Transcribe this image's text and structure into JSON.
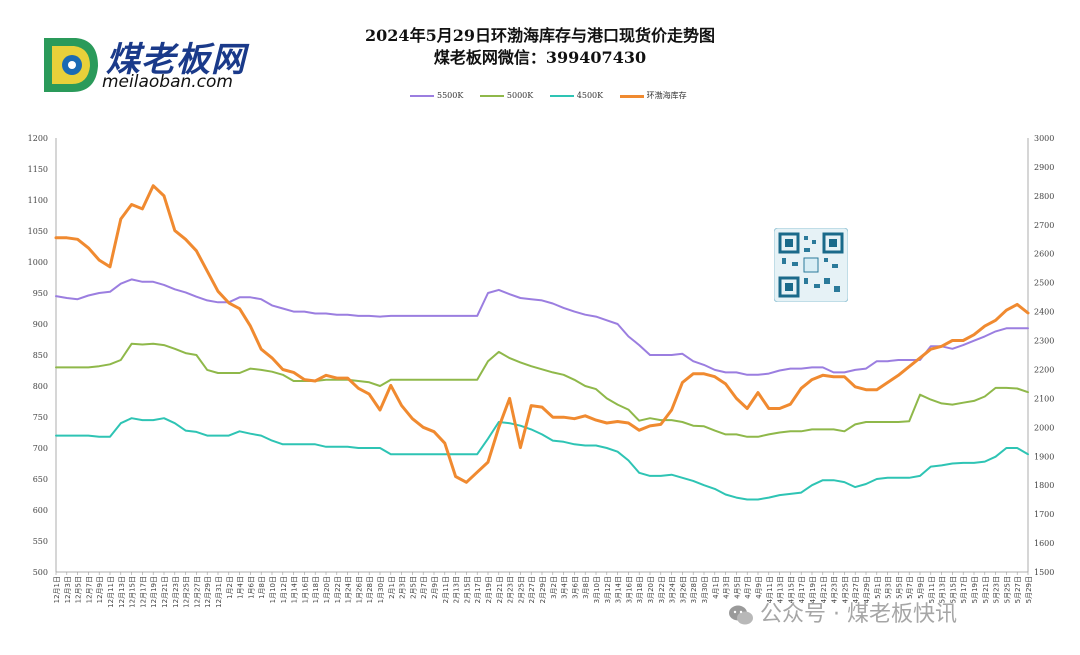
{
  "logo": {
    "brand": "煤老板网",
    "url": "meilaoban.com"
  },
  "watermark": "公众号 · 煤老板快讯",
  "colors": {
    "5500K": "#9b7ee0",
    "5000K": "#8fb84a",
    "4500K": "#2ec4b4",
    "inventory": "#f08a30"
  },
  "chart_data": {
    "type": "line",
    "title": "2024年5月29日环渤海库存与港口现货价走势图",
    "subtitle": "煤老板网微信：399407430",
    "legend_position": "top",
    "grid": false,
    "y_left": {
      "min": 500,
      "max": 1200,
      "ticks": [
        "500",
        "550",
        "600",
        "650",
        "700",
        "750",
        "800",
        "850",
        "900",
        "950",
        "1000",
        "1050",
        "1100",
        "1150",
        "1200"
      ]
    },
    "y_right": {
      "min": 1500,
      "max": 3000,
      "ticks": [
        "1500",
        "1600",
        "1700",
        "1800",
        "1900",
        "2000",
        "2100",
        "2200",
        "2300",
        "2400",
        "2500",
        "2600",
        "2700",
        "2800",
        "2900",
        "3000"
      ]
    },
    "x_ticks": [
      "12月1日",
      "12月3日",
      "12月5日",
      "12月7日",
      "12月9日",
      "12月11日",
      "12月13日",
      "12月15日",
      "12月17日",
      "12月19日",
      "12月21日",
      "12月23日",
      "12月25日",
      "12月27日",
      "12月29日",
      "12月31日",
      "1月2日",
      "1月4日",
      "1月6日",
      "1月8日",
      "1月10日",
      "1月12日",
      "1月14日",
      "1月16日",
      "1月18日",
      "1月20日",
      "1月22日",
      "1月24日",
      "1月26日",
      "1月28日",
      "1月30日",
      "2月1日",
      "2月3日",
      "2月5日",
      "2月7日",
      "2月9日",
      "2月11日",
      "2月13日",
      "2月15日",
      "2月17日",
      "2月19日",
      "2月21日",
      "2月23日",
      "2月25日",
      "2月27日",
      "2月29日",
      "3月2日",
      "3月4日",
      "3月6日",
      "3月8日",
      "3月10日",
      "3月12日",
      "3月14日",
      "3月16日",
      "3月18日",
      "3月20日",
      "3月22日",
      "3月24日",
      "3月26日",
      "3月28日",
      "3月30日",
      "4月1日",
      "4月3日",
      "4月5日",
      "4月7日",
      "4月9日",
      "4月11日",
      "4月13日",
      "4月15日",
      "4月17日",
      "4月19日",
      "4月21日",
      "4月23日",
      "4月25日",
      "4月27日",
      "4月29日",
      "5月1日",
      "5月3日",
      "5月5日",
      "5月7日",
      "5月9日",
      "5月11日",
      "5月13日",
      "5月15日",
      "5月17日",
      "5月19日",
      "5月21日",
      "5月23日",
      "5月25日",
      "5月27日",
      "5月29日"
    ],
    "series": [
      {
        "name": "5500K",
        "axis": "left",
        "color": "#9b7ee0",
        "values": [
          945,
          942,
          940,
          946,
          950,
          952,
          965,
          972,
          968,
          968,
          963,
          956,
          951,
          944,
          938,
          935,
          935,
          943,
          943,
          940,
          930,
          925,
          920,
          920,
          917,
          917,
          915,
          915,
          913,
          913,
          912,
          913,
          913,
          913,
          913,
          913,
          913,
          913,
          913,
          913,
          950,
          955,
          948,
          942,
          940,
          938,
          933,
          926,
          920,
          915,
          912,
          906,
          900,
          880,
          866,
          850,
          850,
          850,
          852,
          840,
          834,
          826,
          822,
          822,
          818,
          818,
          820,
          825,
          828,
          828,
          830,
          830,
          822,
          822,
          826,
          828,
          840,
          840,
          842,
          842,
          842,
          864,
          864,
          860,
          866,
          873,
          880,
          888,
          893,
          893,
          893
        ]
      },
      {
        "name": "5000K",
        "axis": "left",
        "color": "#8fb84a",
        "values": [
          830,
          830,
          830,
          830,
          832,
          835,
          842,
          868,
          867,
          868,
          866,
          860,
          853,
          850,
          826,
          821,
          821,
          821,
          828,
          826,
          823,
          818,
          808,
          808,
          808,
          810,
          810,
          810,
          808,
          806,
          800,
          810,
          810,
          810,
          810,
          810,
          810,
          810,
          810,
          810,
          840,
          855,
          845,
          838,
          832,
          827,
          822,
          818,
          810,
          800,
          795,
          780,
          770,
          762,
          744,
          748,
          745,
          745,
          742,
          736,
          735,
          728,
          722,
          722,
          718,
          718,
          722,
          725,
          727,
          727,
          730,
          730,
          730,
          727,
          738,
          742,
          742,
          742,
          742,
          743,
          786,
          778,
          772,
          770,
          773,
          776,
          783,
          797,
          797,
          796,
          790
        ]
      },
      {
        "name": "4500K",
        "axis": "left",
        "color": "#2ec4b4",
        "values": [
          720,
          720,
          720,
          720,
          718,
          718,
          740,
          748,
          745,
          745,
          748,
          740,
          728,
          726,
          720,
          720,
          720,
          727,
          723,
          720,
          712,
          706,
          706,
          706,
          706,
          702,
          702,
          702,
          700,
          700,
          700,
          690,
          690,
          690,
          690,
          690,
          690,
          690,
          690,
          690,
          715,
          742,
          740,
          736,
          730,
          722,
          712,
          710,
          706,
          704,
          704,
          700,
          694,
          680,
          660,
          655,
          655,
          657,
          652,
          647,
          640,
          634,
          625,
          620,
          617,
          617,
          620,
          624,
          626,
          628,
          640,
          648,
          648,
          645,
          637,
          642,
          650,
          652,
          652,
          652,
          655,
          670,
          672,
          675,
          676,
          676,
          678,
          686,
          700,
          700,
          690
        ]
      },
      {
        "name": "环渤海库存",
        "axis": "right",
        "color": "#f08a30",
        "values": [
          2655,
          2655,
          2650,
          2620,
          2578,
          2555,
          2720,
          2770,
          2755,
          2835,
          2800,
          2680,
          2650,
          2610,
          2540,
          2470,
          2430,
          2410,
          2350,
          2270,
          2240,
          2200,
          2190,
          2165,
          2160,
          2180,
          2170,
          2170,
          2135,
          2115,
          2060,
          2145,
          2075,
          2030,
          2000,
          1985,
          1945,
          1830,
          1810,
          1845,
          1880,
          2000,
          2100,
          1930,
          2075,
          2070,
          2035,
          2035,
          2030,
          2040,
          2025,
          2015,
          2020,
          2015,
          1990,
          2005,
          2010,
          2060,
          2155,
          2185,
          2185,
          2175,
          2150,
          2100,
          2065,
          2120,
          2065,
          2065,
          2080,
          2135,
          2165,
          2180,
          2175,
          2175,
          2140,
          2130,
          2130,
          2155,
          2180,
          2210,
          2240,
          2270,
          2280,
          2300,
          2300,
          2320,
          2350,
          2370,
          2405,
          2425,
          2395
        ]
      }
    ]
  }
}
